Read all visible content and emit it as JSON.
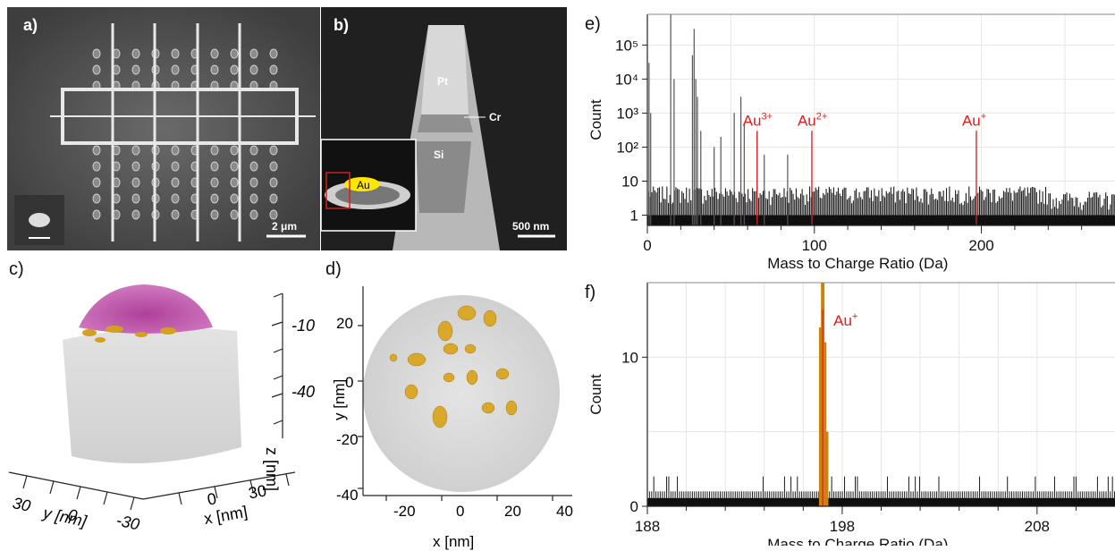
{
  "panel_a": {
    "label": "a)",
    "scalebar": "2 μm"
  },
  "panel_b": {
    "label": "b)",
    "scalebar": "500 nm",
    "annotations": {
      "pt": "Pt",
      "cr": "Cr",
      "si": "Si",
      "au": "Au"
    }
  },
  "panel_c": {
    "label": "c)",
    "z_label": "z [nm]",
    "x_label": "x [nm]",
    "y_label": "y [nm]",
    "z_ticks": [
      "-10",
      "-40"
    ],
    "x_ticks": [
      "0",
      "30"
    ],
    "y_ticks": [
      "30",
      "0",
      "-30"
    ]
  },
  "panel_d": {
    "label": "d)",
    "x_label": "x [nm]",
    "y_label": "y [nm]",
    "x_ticks": [
      "-20",
      "0",
      "20",
      "40"
    ],
    "y_ticks": [
      "20",
      "0",
      "-20",
      "-40"
    ]
  },
  "chart_data": [
    {
      "id": "e",
      "label": "e)",
      "type": "bar",
      "xlabel": "Mass to Charge Ratio (Da)",
      "ylabel": "Count",
      "xlim": [
        0,
        280
      ],
      "yscale": "log",
      "ylim": [
        0.5,
        800000
      ],
      "x_ticks": [
        "0",
        "100",
        "200"
      ],
      "y_ticks": [
        "1",
        "10",
        "10²",
        "10³",
        "10⁴",
        "10⁵"
      ],
      "background_level": 5,
      "peaks": [
        {
          "x": 1,
          "y": 30000
        },
        {
          "x": 2,
          "y": 1000
        },
        {
          "x": 14,
          "y": 800000
        },
        {
          "x": 16,
          "y": 10000
        },
        {
          "x": 27,
          "y": 50000
        },
        {
          "x": 28,
          "y": 300000
        },
        {
          "x": 29,
          "y": 10000
        },
        {
          "x": 30,
          "y": 3000
        },
        {
          "x": 32,
          "y": 300
        },
        {
          "x": 40,
          "y": 100
        },
        {
          "x": 44,
          "y": 200
        },
        {
          "x": 52,
          "y": 1000
        },
        {
          "x": 56,
          "y": 3000
        },
        {
          "x": 58,
          "y": 500
        },
        {
          "x": 65.7,
          "y": 300
        },
        {
          "x": 70,
          "y": 60
        },
        {
          "x": 84,
          "y": 60
        },
        {
          "x": 98.5,
          "y": 300
        },
        {
          "x": 197,
          "y": 300
        }
      ],
      "annotations": [
        {
          "text": "Au",
          "sup": "3+",
          "x": 65.7,
          "color": "#e31b1b"
        },
        {
          "text": "Au",
          "sup": "2+",
          "x": 98.5,
          "color": "#e31b1b"
        },
        {
          "text": "Au",
          "sup": "+",
          "x": 197,
          "color": "#e31b1b"
        }
      ]
    },
    {
      "id": "f",
      "label": "f)",
      "type": "bar",
      "xlabel": "Mass to Charge Ratio (Da)",
      "ylabel": "Count",
      "xlim": [
        188,
        212
      ],
      "ylim": [
        0,
        15
      ],
      "x_ticks": [
        "188",
        "198",
        "208"
      ],
      "y_ticks": [
        "0",
        "10"
      ],
      "background_level": 2,
      "peaks": [
        {
          "x": 197,
          "y": 15
        },
        {
          "x": 196.9,
          "y": 12
        },
        {
          "x": 197.1,
          "y": 11
        },
        {
          "x": 197.2,
          "y": 5
        }
      ],
      "annotations": [
        {
          "text": "Au",
          "sup": "+",
          "x": 197,
          "color": "#e31b1b"
        }
      ]
    }
  ]
}
